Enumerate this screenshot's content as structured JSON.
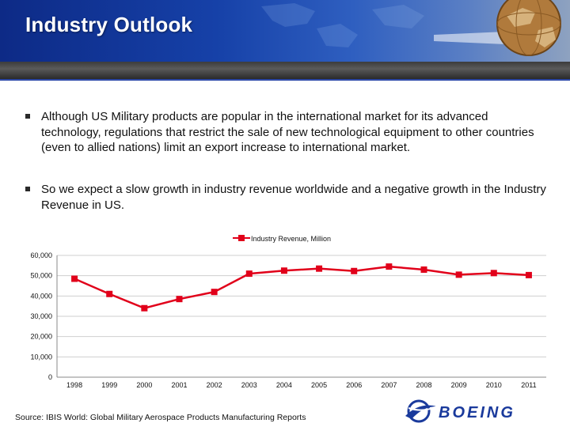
{
  "header": {
    "title": "Industry Outlook",
    "colors": {
      "primary": "#1641a8",
      "band": "#4a4a4a"
    }
  },
  "bullets": [
    "Although US Military products are popular in the international market for its advanced technology, regulations that restrict the sale of new technological equipment to other countries (even to allied nations) limit an export increase to international market.",
    "So we expect a slow growth in industry revenue worldwide and a negative growth in the Industry Revenue in US."
  ],
  "chart_data": {
    "type": "line",
    "title": "",
    "legend": "Industry Revenue, Million",
    "legend_position": "top",
    "x": [
      "1998",
      "1999",
      "2000",
      "2001",
      "2002",
      "2003",
      "2004",
      "2005",
      "2006",
      "2007",
      "2008",
      "2009",
      "2010",
      "2011"
    ],
    "series": [
      {
        "name": "Industry Revenue, Million",
        "values": [
          48500,
          41000,
          34000,
          38500,
          42000,
          51000,
          52500,
          53500,
          52300,
          54500,
          53000,
          50500,
          51300,
          50300
        ],
        "color": "#e1001a"
      }
    ],
    "yticks": [
      "60,000",
      "50,000",
      "40,000",
      "30,000",
      "20,000",
      "10,000",
      "0"
    ],
    "ylim": [
      0,
      60000
    ],
    "grid": "horizontal",
    "xlabel": "",
    "ylabel": ""
  },
  "source": "Source: IBIS World: Global Military Aerospace Products Manufacturing Reports",
  "logo": {
    "text": "BOEING",
    "icon": "boeing-logo-icon",
    "color": "#1a3a9c"
  }
}
